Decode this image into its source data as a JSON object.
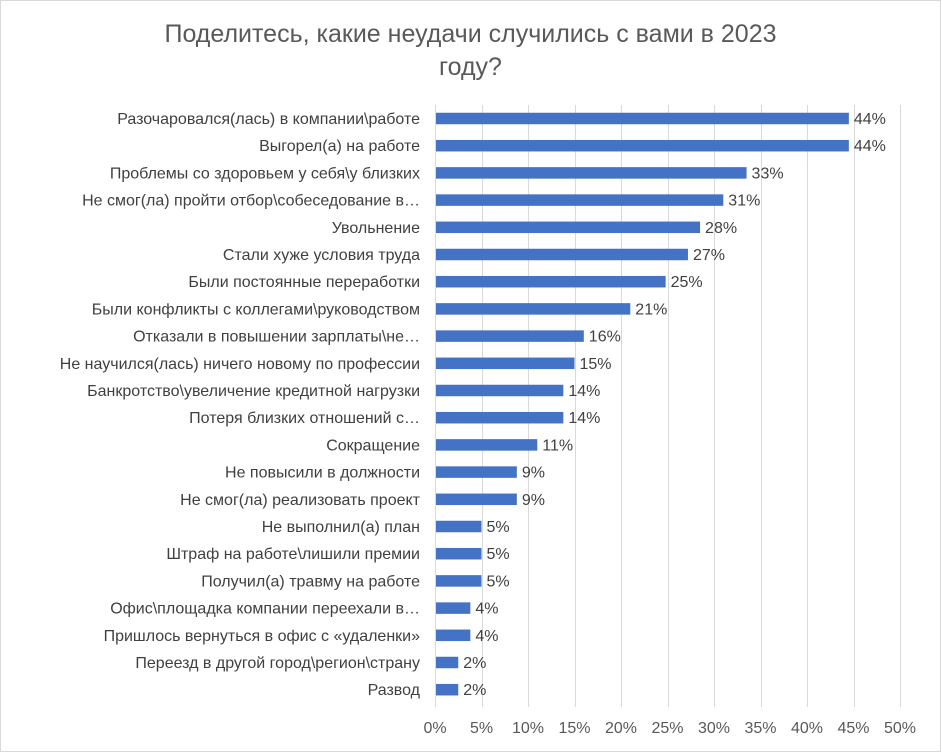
{
  "chart_data": {
    "type": "bar",
    "orientation": "horizontal",
    "title_lines": [
      "Поделитесь, какие неудачи случились с вами в 2023",
      "году?"
    ],
    "xlabel": "",
    "ylabel": "",
    "xlim": [
      0,
      50
    ],
    "grid": true,
    "legend": "none",
    "bar_color": "#4472c4",
    "ticks": [
      "0%",
      "5%",
      "10%",
      "15%",
      "20%",
      "25%",
      "30%",
      "35%",
      "40%",
      "45%",
      "50%"
    ],
    "categories": [
      "Разочаровался(лась) в компании\\работе",
      "Выгорел(а) на работе",
      "Проблемы со здоровьем у себя\\у близких",
      "Не смог(ла) пройти отбор\\собеседование в…",
      "Увольнение",
      "Стали хуже условия труда",
      "Были постоянные переработки",
      "Были конфликты с коллегами\\руководством",
      "Отказали в повышении зарплаты\\не…",
      "Не научился(лась) ничего новому по профессии",
      "Банкротство\\увеличение кредитной нагрузки",
      "Потеря близких отношений с…",
      "Сокращение",
      "Не повысили в должности",
      "Не смог(ла) реализовать проект",
      "Не выполнил(а)  план",
      "Штраф на работе\\лишили премии",
      "Получил(а)  травму на работе",
      "Офис\\площадка  компании  переехали в…",
      "Пришлось вернуться в офис с «удаленки»",
      "Переезд в другой город\\регион\\страну",
      "Развод"
    ],
    "values": [
      44.5,
      44.5,
      33.5,
      31,
      28.5,
      27.2,
      24.8,
      21,
      16,
      15,
      13.8,
      13.8,
      11,
      8.8,
      8.8,
      5,
      5,
      5,
      3.8,
      3.8,
      2.5,
      2.5
    ],
    "value_labels": [
      "44%",
      "44%",
      "33%",
      "31%",
      "28%",
      "27%",
      "25%",
      "21%",
      "16%",
      "15%",
      "14%",
      "14%",
      "11%",
      "9%",
      "9%",
      "5%",
      "5%",
      "5%",
      "4%",
      "4%",
      "2%",
      "2%"
    ]
  }
}
